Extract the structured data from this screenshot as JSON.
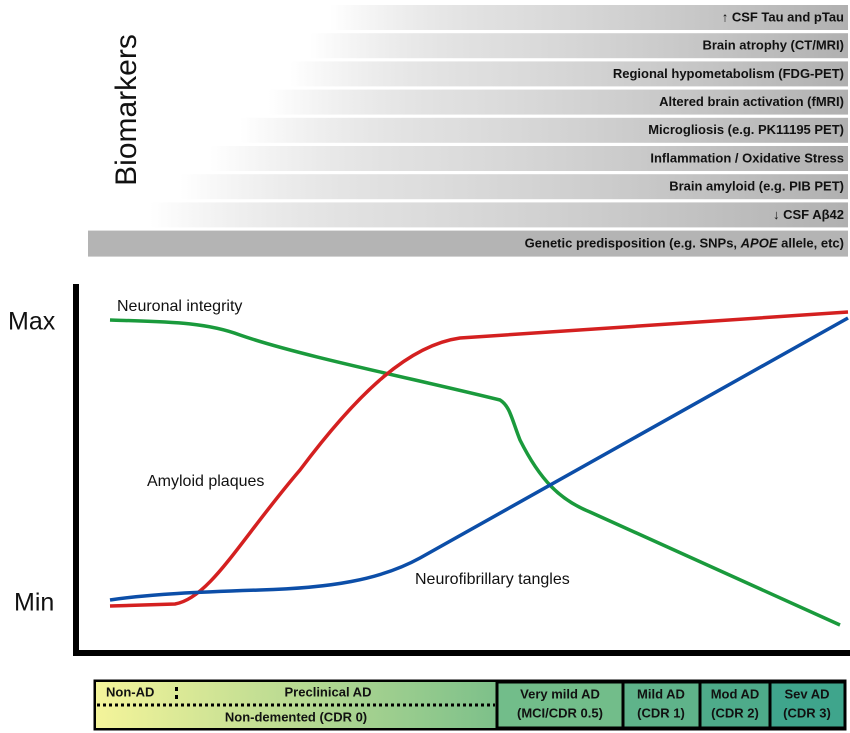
{
  "biomarkers": {
    "title": "Biomarkers",
    "items": [
      "↑ CSF Tau and pTau",
      "Brain atrophy (CT/MRI)",
      "Regional hypometabolism (FDG-PET)",
      "Altered brain activation (fMRI)",
      "Microgliosis (e.g. PK11195 PET)",
      "Inflammation / Oxidative Stress",
      "Brain amyloid (e.g. PIB PET)",
      "↓ CSF Aβ42"
    ],
    "genetic": {
      "before": "Genetic predisposition (e.g. SNPs, ",
      "italic": "APOE",
      "after": " allele, etc)"
    }
  },
  "axis": {
    "max": "Max",
    "min": "Min"
  },
  "curves": {
    "neuronal": "Neuronal integrity",
    "amyloid": "Amyloid plaques",
    "tangles": "Neurofibrillary tangles"
  },
  "stages": {
    "non_ad": "Non-AD",
    "preclinical": "Preclinical AD",
    "non_demented": "Non-demented (CDR 0)",
    "others": [
      [
        "Very mild AD",
        "(MCI/CDR 0.5)"
      ],
      [
        "Mild AD",
        "(CDR 1)"
      ],
      [
        "Mod AD",
        "(CDR 2)"
      ],
      [
        "Sev AD",
        "(CDR 3)"
      ]
    ]
  }
}
